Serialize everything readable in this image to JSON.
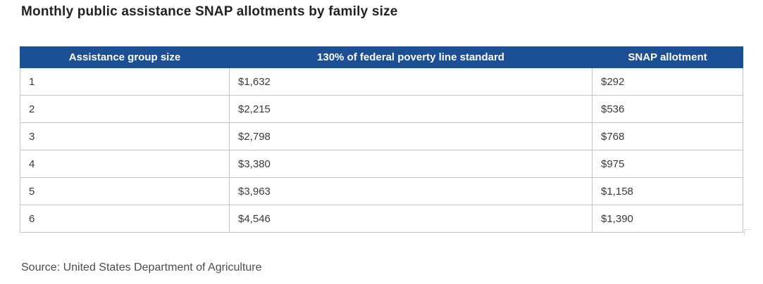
{
  "title": "Monthly public assistance SNAP allotments by family size",
  "source": "Source: United States Department of Agriculture",
  "colors": {
    "header_bg": "#1c4f94",
    "header_text": "#ffffff",
    "border": "#c4c4c4",
    "body_text": "#3a3a3a",
    "title_text": "#222222",
    "source_text": "#4d4d4d"
  },
  "table": {
    "columns": [
      "Assistance group size",
      "130% of federal poverty line standard",
      "SNAP allotment"
    ],
    "rows": [
      [
        "1",
        "$1,632",
        "$292"
      ],
      [
        "2",
        "$2,215",
        "$536"
      ],
      [
        "3",
        "$2,798",
        "$768"
      ],
      [
        "4",
        "$3,380",
        "$975"
      ],
      [
        "5",
        "$3,963",
        "$1,158"
      ],
      [
        "6",
        "$4,546",
        "$1,390"
      ]
    ]
  },
  "chart_data": {
    "type": "table",
    "title": "Monthly public assistance SNAP allotments by family size",
    "columns": [
      "Assistance group size",
      "130% of federal poverty line standard",
      "SNAP allotment"
    ],
    "rows": [
      [
        1,
        "$1,632",
        "$292"
      ],
      [
        2,
        "$2,215",
        "$536"
      ],
      [
        3,
        "$2,798",
        "$768"
      ],
      [
        4,
        "$3,380",
        "$975"
      ],
      [
        5,
        "$3,963",
        "$1,158"
      ],
      [
        6,
        "$4,546",
        "$1,390"
      ]
    ],
    "source": "Source: United States Department of Agriculture",
    "layout": {
      "header_style": "solid navy bar, white bold centered text",
      "body_alignment": "left",
      "grid": "light gray 1px borders"
    }
  }
}
